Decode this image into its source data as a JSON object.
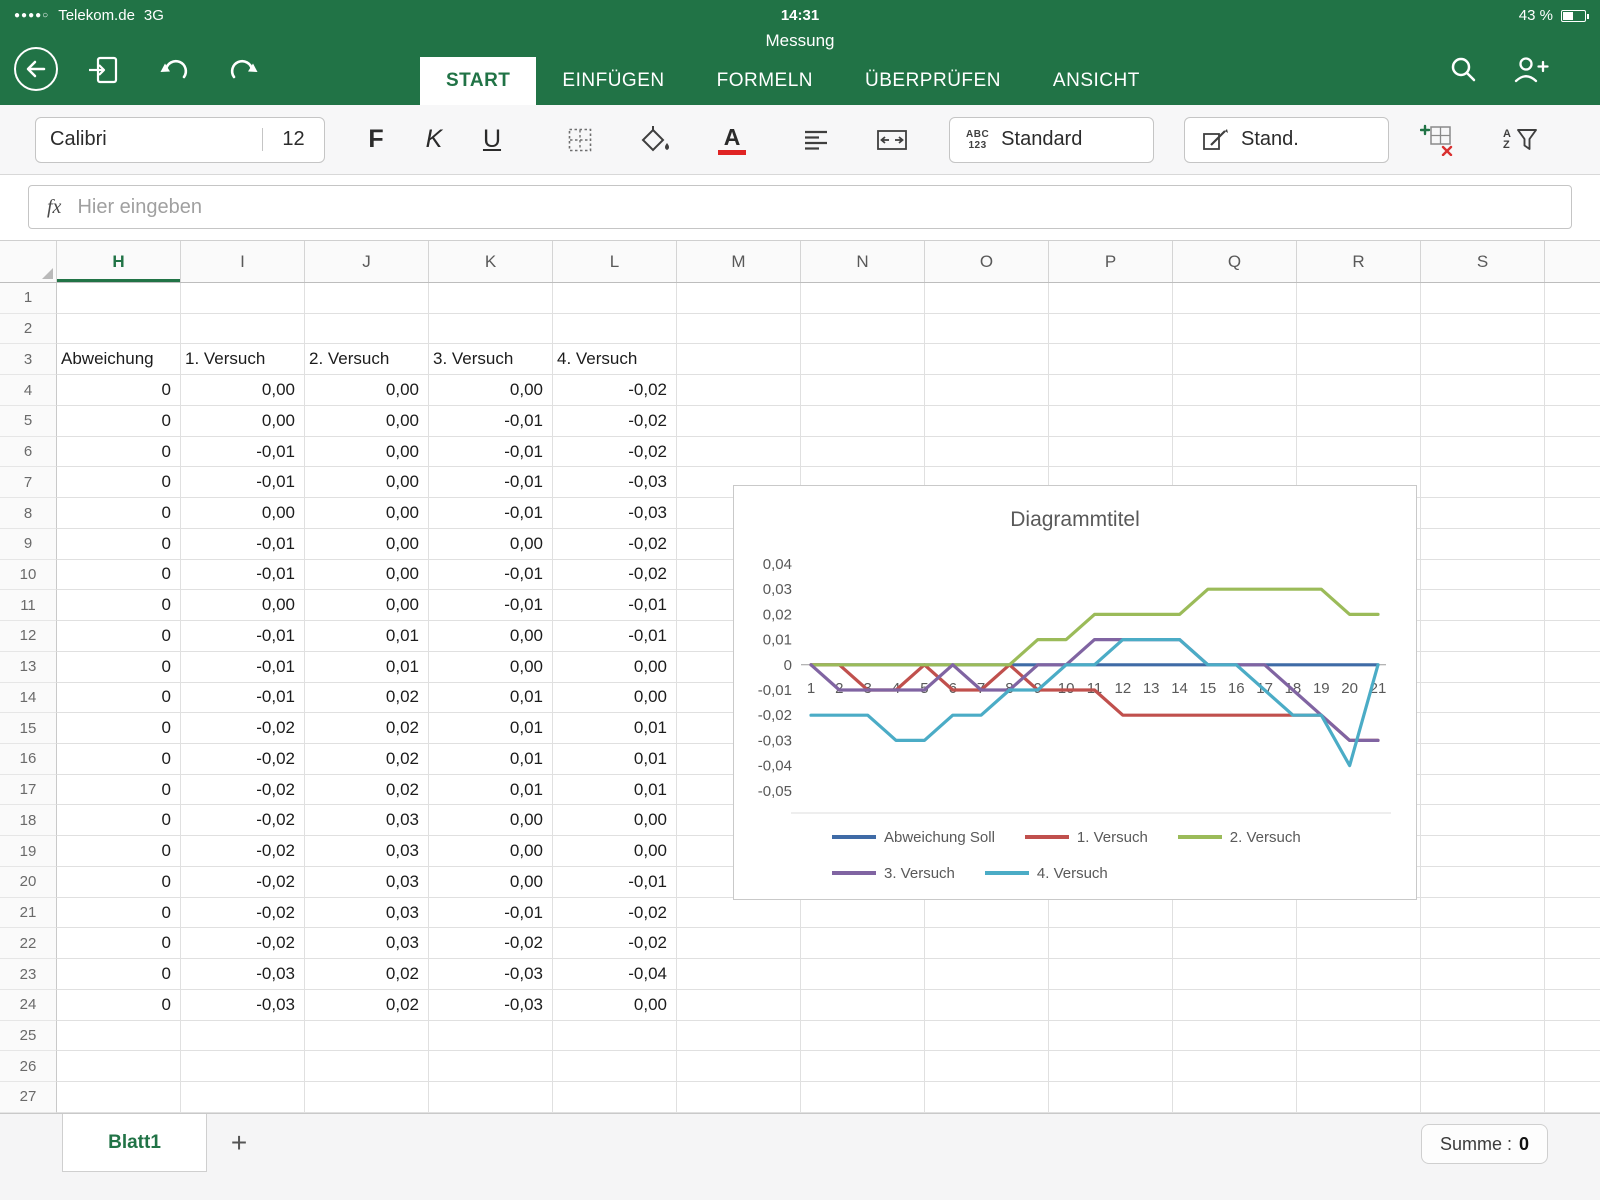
{
  "status_bar": {
    "signal": "●●●●○",
    "carrier": "Telekom.de",
    "network": "3G",
    "time": "14:31",
    "doc_title": "Messung",
    "battery_pct": "43 %"
  },
  "ribbon": {
    "tabs": [
      {
        "label": "START",
        "active": true
      },
      {
        "label": "EINFÜGEN",
        "active": false
      },
      {
        "label": "FORMELN",
        "active": false
      },
      {
        "label": "ÜBERPRÜFEN",
        "active": false
      },
      {
        "label": "ANSICHT",
        "active": false
      }
    ]
  },
  "toolbar": {
    "font_name": "Calibri",
    "font_size": "12",
    "bold_label": "F",
    "italic_label": "K",
    "underline_label": "U",
    "abc_top": "ABC",
    "abc_bottom": "123",
    "number_format_label": "Standard",
    "cell_format_label": "Stand.",
    "az_a": "A",
    "az_z": "Z"
  },
  "formula_bar": {
    "fx_label": "fx",
    "placeholder": "Hier eingeben"
  },
  "sheet": {
    "columns": [
      "H",
      "I",
      "J",
      "K",
      "L",
      "M",
      "N",
      "O",
      "P",
      "Q",
      "R",
      "S"
    ],
    "selected_column": "H",
    "row_count": 27,
    "row_numbers": [
      1,
      2,
      3,
      4,
      5,
      6,
      7,
      8,
      9,
      10,
      11,
      12,
      13,
      14,
      15,
      16,
      17,
      18,
      19,
      20,
      21,
      22,
      23,
      24,
      25,
      26,
      27
    ],
    "table": {
      "header_row": 3,
      "headers": [
        "Abweichung",
        "1. Versuch",
        "2. Versuch",
        "3. Versuch",
        "4. Versuch"
      ],
      "data_rows_start": 4,
      "rows": [
        [
          "0",
          "0,00",
          "0,00",
          "0,00",
          "-0,02"
        ],
        [
          "0",
          "0,00",
          "0,00",
          "-0,01",
          "-0,02"
        ],
        [
          "0",
          "-0,01",
          "0,00",
          "-0,01",
          "-0,02"
        ],
        [
          "0",
          "-0,01",
          "0,00",
          "-0,01",
          "-0,03"
        ],
        [
          "0",
          "0,00",
          "0,00",
          "-0,01",
          "-0,03"
        ],
        [
          "0",
          "-0,01",
          "0,00",
          "0,00",
          "-0,02"
        ],
        [
          "0",
          "-0,01",
          "0,00",
          "-0,01",
          "-0,02"
        ],
        [
          "0",
          "0,00",
          "0,00",
          "-0,01",
          "-0,01"
        ],
        [
          "0",
          "-0,01",
          "0,01",
          "0,00",
          "-0,01"
        ],
        [
          "0",
          "-0,01",
          "0,01",
          "0,00",
          "0,00"
        ],
        [
          "0",
          "-0,01",
          "0,02",
          "0,01",
          "0,00"
        ],
        [
          "0",
          "-0,02",
          "0,02",
          "0,01",
          "0,01"
        ],
        [
          "0",
          "-0,02",
          "0,02",
          "0,01",
          "0,01"
        ],
        [
          "0",
          "-0,02",
          "0,02",
          "0,01",
          "0,01"
        ],
        [
          "0",
          "-0,02",
          "0,03",
          "0,00",
          "0,00"
        ],
        [
          "0",
          "-0,02",
          "0,03",
          "0,00",
          "0,00"
        ],
        [
          "0",
          "-0,02",
          "0,03",
          "0,00",
          "-0,01"
        ],
        [
          "0",
          "-0,02",
          "0,03",
          "-0,01",
          "-0,02"
        ],
        [
          "0",
          "-0,02",
          "0,03",
          "-0,02",
          "-0,02"
        ],
        [
          "0",
          "-0,03",
          "0,02",
          "-0,03",
          "-0,04"
        ],
        [
          "0",
          "-0,03",
          "0,02",
          "-0,03",
          "0,00"
        ]
      ]
    }
  },
  "chart_data": {
    "type": "line",
    "title": "Diagrammtitel",
    "x": [
      1,
      2,
      3,
      4,
      5,
      6,
      7,
      8,
      9,
      10,
      11,
      12,
      13,
      14,
      15,
      16,
      17,
      18,
      19,
      20,
      21
    ],
    "ylim": [
      -0.05,
      0.04
    ],
    "y_tick_labels": [
      "0,04",
      "0,03",
      "0,02",
      "0,01",
      "0",
      "-0,01",
      "-0,02",
      "-0,03",
      "-0,04",
      "-0,05"
    ],
    "grid": false,
    "legend_position": "bottom",
    "legend_rows": [
      [
        0,
        1,
        2
      ],
      [
        3,
        4
      ]
    ],
    "series": [
      {
        "name": "Abweichung Soll",
        "color": "#3f6ba6",
        "values": [
          0,
          0,
          0,
          0,
          0,
          0,
          0,
          0,
          0,
          0,
          0,
          0,
          0,
          0,
          0,
          0,
          0,
          0,
          0,
          0,
          0
        ]
      },
      {
        "name": "1. Versuch",
        "color": "#c0504d",
        "values": [
          0,
          0,
          -0.01,
          -0.01,
          0,
          -0.01,
          -0.01,
          0,
          -0.01,
          -0.01,
          -0.01,
          -0.02,
          -0.02,
          -0.02,
          -0.02,
          -0.02,
          -0.02,
          -0.02,
          -0.02,
          -0.03,
          -0.03
        ]
      },
      {
        "name": "2. Versuch",
        "color": "#9bbb59",
        "values": [
          0,
          0,
          0,
          0,
          0,
          0,
          0,
          0,
          0.01,
          0.01,
          0.02,
          0.02,
          0.02,
          0.02,
          0.03,
          0.03,
          0.03,
          0.03,
          0.03,
          0.02,
          0.02
        ]
      },
      {
        "name": "3. Versuch",
        "color": "#8064a2",
        "values": [
          0,
          -0.01,
          -0.01,
          -0.01,
          -0.01,
          0,
          -0.01,
          -0.01,
          0,
          0,
          0.01,
          0.01,
          0.01,
          0.01,
          0,
          0,
          0,
          -0.01,
          -0.02,
          -0.03,
          -0.03
        ]
      },
      {
        "name": "4. Versuch",
        "color": "#4bacc6",
        "values": [
          -0.02,
          -0.02,
          -0.02,
          -0.03,
          -0.03,
          -0.02,
          -0.02,
          -0.01,
          -0.01,
          0,
          0,
          0.01,
          0.01,
          0.01,
          0,
          0,
          -0.01,
          -0.02,
          -0.02,
          -0.04,
          0
        ]
      }
    ]
  },
  "sheet_bar": {
    "active_tab": "Blatt1",
    "add_label": "+",
    "summary_label": "Summe :",
    "summary_value": "0"
  }
}
